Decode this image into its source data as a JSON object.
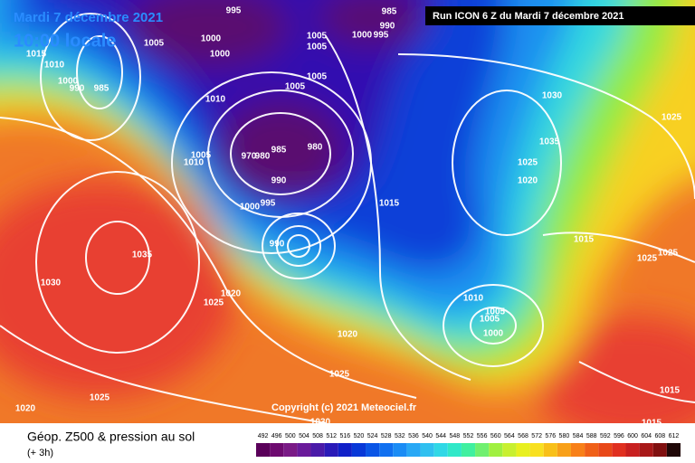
{
  "map": {
    "date": "Mardi 7 décembre 2021",
    "time": "10:00 locale",
    "run": "Run ICON 6 Z du Mardi 7 décembre 2021",
    "copyright": "Copyright (c) 2021 Meteociel.fr",
    "isobar_labels": [
      1015,
      1010,
      1000,
      990,
      985,
      1005,
      1000,
      1000,
      995,
      1005,
      1005,
      1000,
      995,
      985,
      990,
      1005,
      1005,
      1010,
      1030,
      1025,
      1035,
      1025,
      1020,
      1005,
      1010,
      985,
      980,
      970,
      980,
      990,
      995,
      1000,
      1015,
      990,
      1035,
      1030,
      1020,
      1025,
      1015,
      1025,
      1025,
      1010,
      1005,
      1005,
      1000,
      1020,
      1025,
      1025,
      1020,
      1030,
      1015,
      1015
    ]
  },
  "legend": {
    "title": "Géop. Z500 & pression au sol",
    "subtitle": "(+ 3h)",
    "scale_values": [
      492,
      496,
      500,
      504,
      508,
      512,
      516,
      520,
      524,
      528,
      532,
      536,
      540,
      544,
      548,
      552,
      556,
      560,
      564,
      568,
      572,
      576,
      580,
      584,
      588,
      592,
      596,
      600,
      604,
      608,
      612
    ],
    "scale_colors": [
      "#5a005a",
      "#6e0a70",
      "#7a1a86",
      "#6a1a9a",
      "#4a1aa8",
      "#2a1ab8",
      "#1020c8",
      "#0838d8",
      "#0a55e6",
      "#1070f0",
      "#1a8cf5",
      "#28a8f5",
      "#30c0f0",
      "#30d8e6",
      "#30e8c8",
      "#40f0a0",
      "#70f070",
      "#a0f040",
      "#c8f030",
      "#e8f020",
      "#f8e020",
      "#f8c018",
      "#f8a018",
      "#f88018",
      "#f06018",
      "#e84818",
      "#e03020",
      "#c82020",
      "#a81818",
      "#801010",
      "#200808"
    ]
  }
}
